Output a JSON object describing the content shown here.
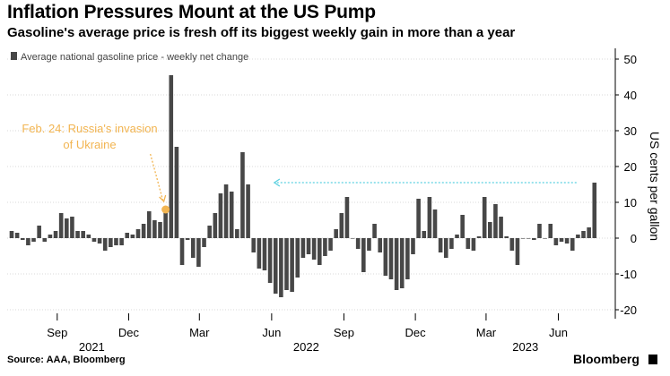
{
  "header": {
    "title": "Inflation Pressures Mount at the US Pump",
    "subtitle": "Gasoline's average price is fresh off its biggest weekly gain in more than a year"
  },
  "footer": {
    "source": "Source: AAA, Bloomberg",
    "brand": "Bloomberg"
  },
  "colors": {
    "bar": "#474747",
    "annotation": "#f2b552",
    "arrow": "#5ad0e0",
    "grid": "#d9d9d9"
  },
  "chart_data": {
    "type": "bar",
    "legend": "Average national gasoline price - weekly net change",
    "legend_position": "top-left",
    "ylabel": "US cents per gallon",
    "ylim": [
      -22,
      52
    ],
    "yticks": [
      50,
      40,
      30,
      20,
      10,
      0,
      -10,
      -20
    ],
    "y_axis_side": "right",
    "grid": true,
    "x_start": "2021-07-05",
    "x_ticks": [
      {
        "label": "Sep",
        "date": "2021-09-01"
      },
      {
        "label": "Dec",
        "date": "2021-12-01"
      },
      {
        "label": "Mar",
        "date": "2022-03-01"
      },
      {
        "label": "Jun",
        "date": "2022-06-01"
      },
      {
        "label": "Sep",
        "date": "2022-09-01"
      },
      {
        "label": "Dec",
        "date": "2022-12-01"
      },
      {
        "label": "Mar",
        "date": "2023-03-01"
      },
      {
        "label": "Jun",
        "date": "2023-06-01"
      }
    ],
    "year_labels": [
      {
        "label": "2021",
        "date": "2021-10-15"
      },
      {
        "label": "2022",
        "date": "2022-07-15"
      },
      {
        "label": "2023",
        "date": "2023-04-20"
      }
    ],
    "values": [
      2,
      1.5,
      -0.5,
      -2,
      -1,
      3.5,
      -1,
      1,
      2,
      7,
      5.5,
      6,
      2,
      2,
      1,
      -1,
      -1.5,
      -3.5,
      -2.5,
      -2,
      -2,
      1.5,
      1,
      2.5,
      4,
      7.5,
      5,
      4.5,
      8,
      45.5,
      25.5,
      -7.5,
      -0.5,
      -5.5,
      -8,
      -2.5,
      3.5,
      7,
      12.5,
      15,
      13,
      2.5,
      24,
      15,
      -4,
      -8.5,
      -9,
      -12.5,
      -15.5,
      -16.5,
      -14.5,
      -15,
      -11,
      -5.5,
      -4.5,
      -6,
      -7.5,
      -5,
      -3.5,
      2.5,
      7,
      11.5,
      0,
      -3,
      -9.5,
      -3.5,
      4,
      -4,
      -10.5,
      -11.5,
      -14.5,
      -14,
      -11.5,
      -4.5,
      11,
      2,
      11.5,
      8,
      -4,
      -5.5,
      -3,
      1,
      6.5,
      -3,
      -3.5,
      0.5,
      11.5,
      4.5,
      9.5,
      6,
      0.5,
      -3.5,
      -7.5,
      0,
      0,
      -0.5,
      4,
      0,
      4,
      -2,
      -1,
      -1.5,
      -3.5,
      1,
      2,
      3,
      15.5
    ],
    "annotations": [
      {
        "text_lines": [
          "Feb. 24: Russia's invasion",
          "of Ukraine"
        ],
        "marker_index": 28,
        "marker_value": 8
      }
    ],
    "reference_arrow": {
      "value": 15.5,
      "direction": "left"
    }
  }
}
